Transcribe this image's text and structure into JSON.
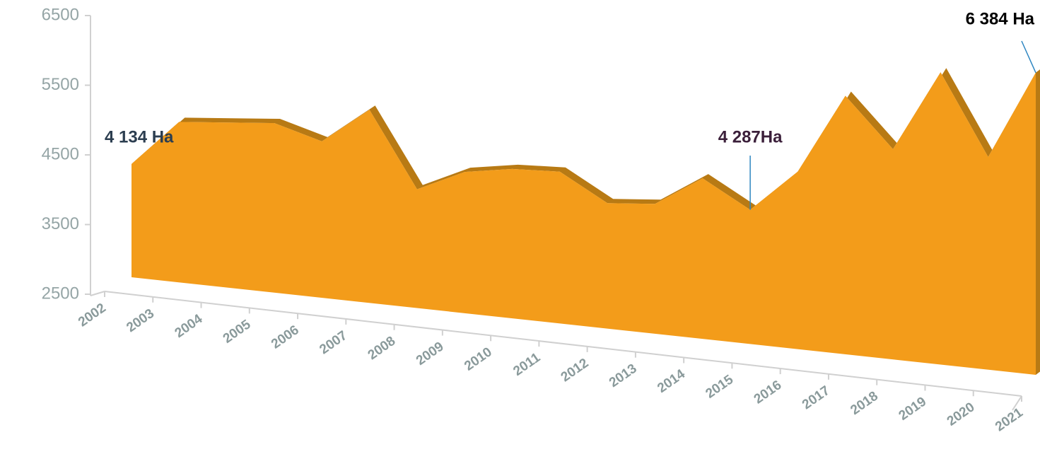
{
  "chart_data": {
    "type": "area3d",
    "categories": [
      "2002",
      "2003",
      "2004",
      "2005",
      "2006",
      "2007",
      "2008",
      "2009",
      "2010",
      "2011",
      "2012",
      "2013",
      "2014",
      "2015",
      "2016",
      "2017",
      "2018",
      "2019",
      "2020",
      "2021"
    ],
    "values": [
      4134,
      4800,
      4850,
      4900,
      4700,
      5200,
      4150,
      4450,
      4550,
      4570,
      4200,
      4250,
      4650,
      4287,
      4850,
      5900,
      5250,
      6300,
      5250,
      6384
    ],
    "value_labels": [
      "4 134 Ha",
      null,
      null,
      null,
      null,
      null,
      null,
      null,
      null,
      null,
      null,
      null,
      null,
      "4 287Ha",
      null,
      null,
      null,
      null,
      null,
      "6  384 Ha"
    ],
    "color": "#f39c1a",
    "ylim": [
      2500,
      6500
    ],
    "yticks": [
      2500,
      3500,
      4500,
      5500,
      6500
    ]
  }
}
